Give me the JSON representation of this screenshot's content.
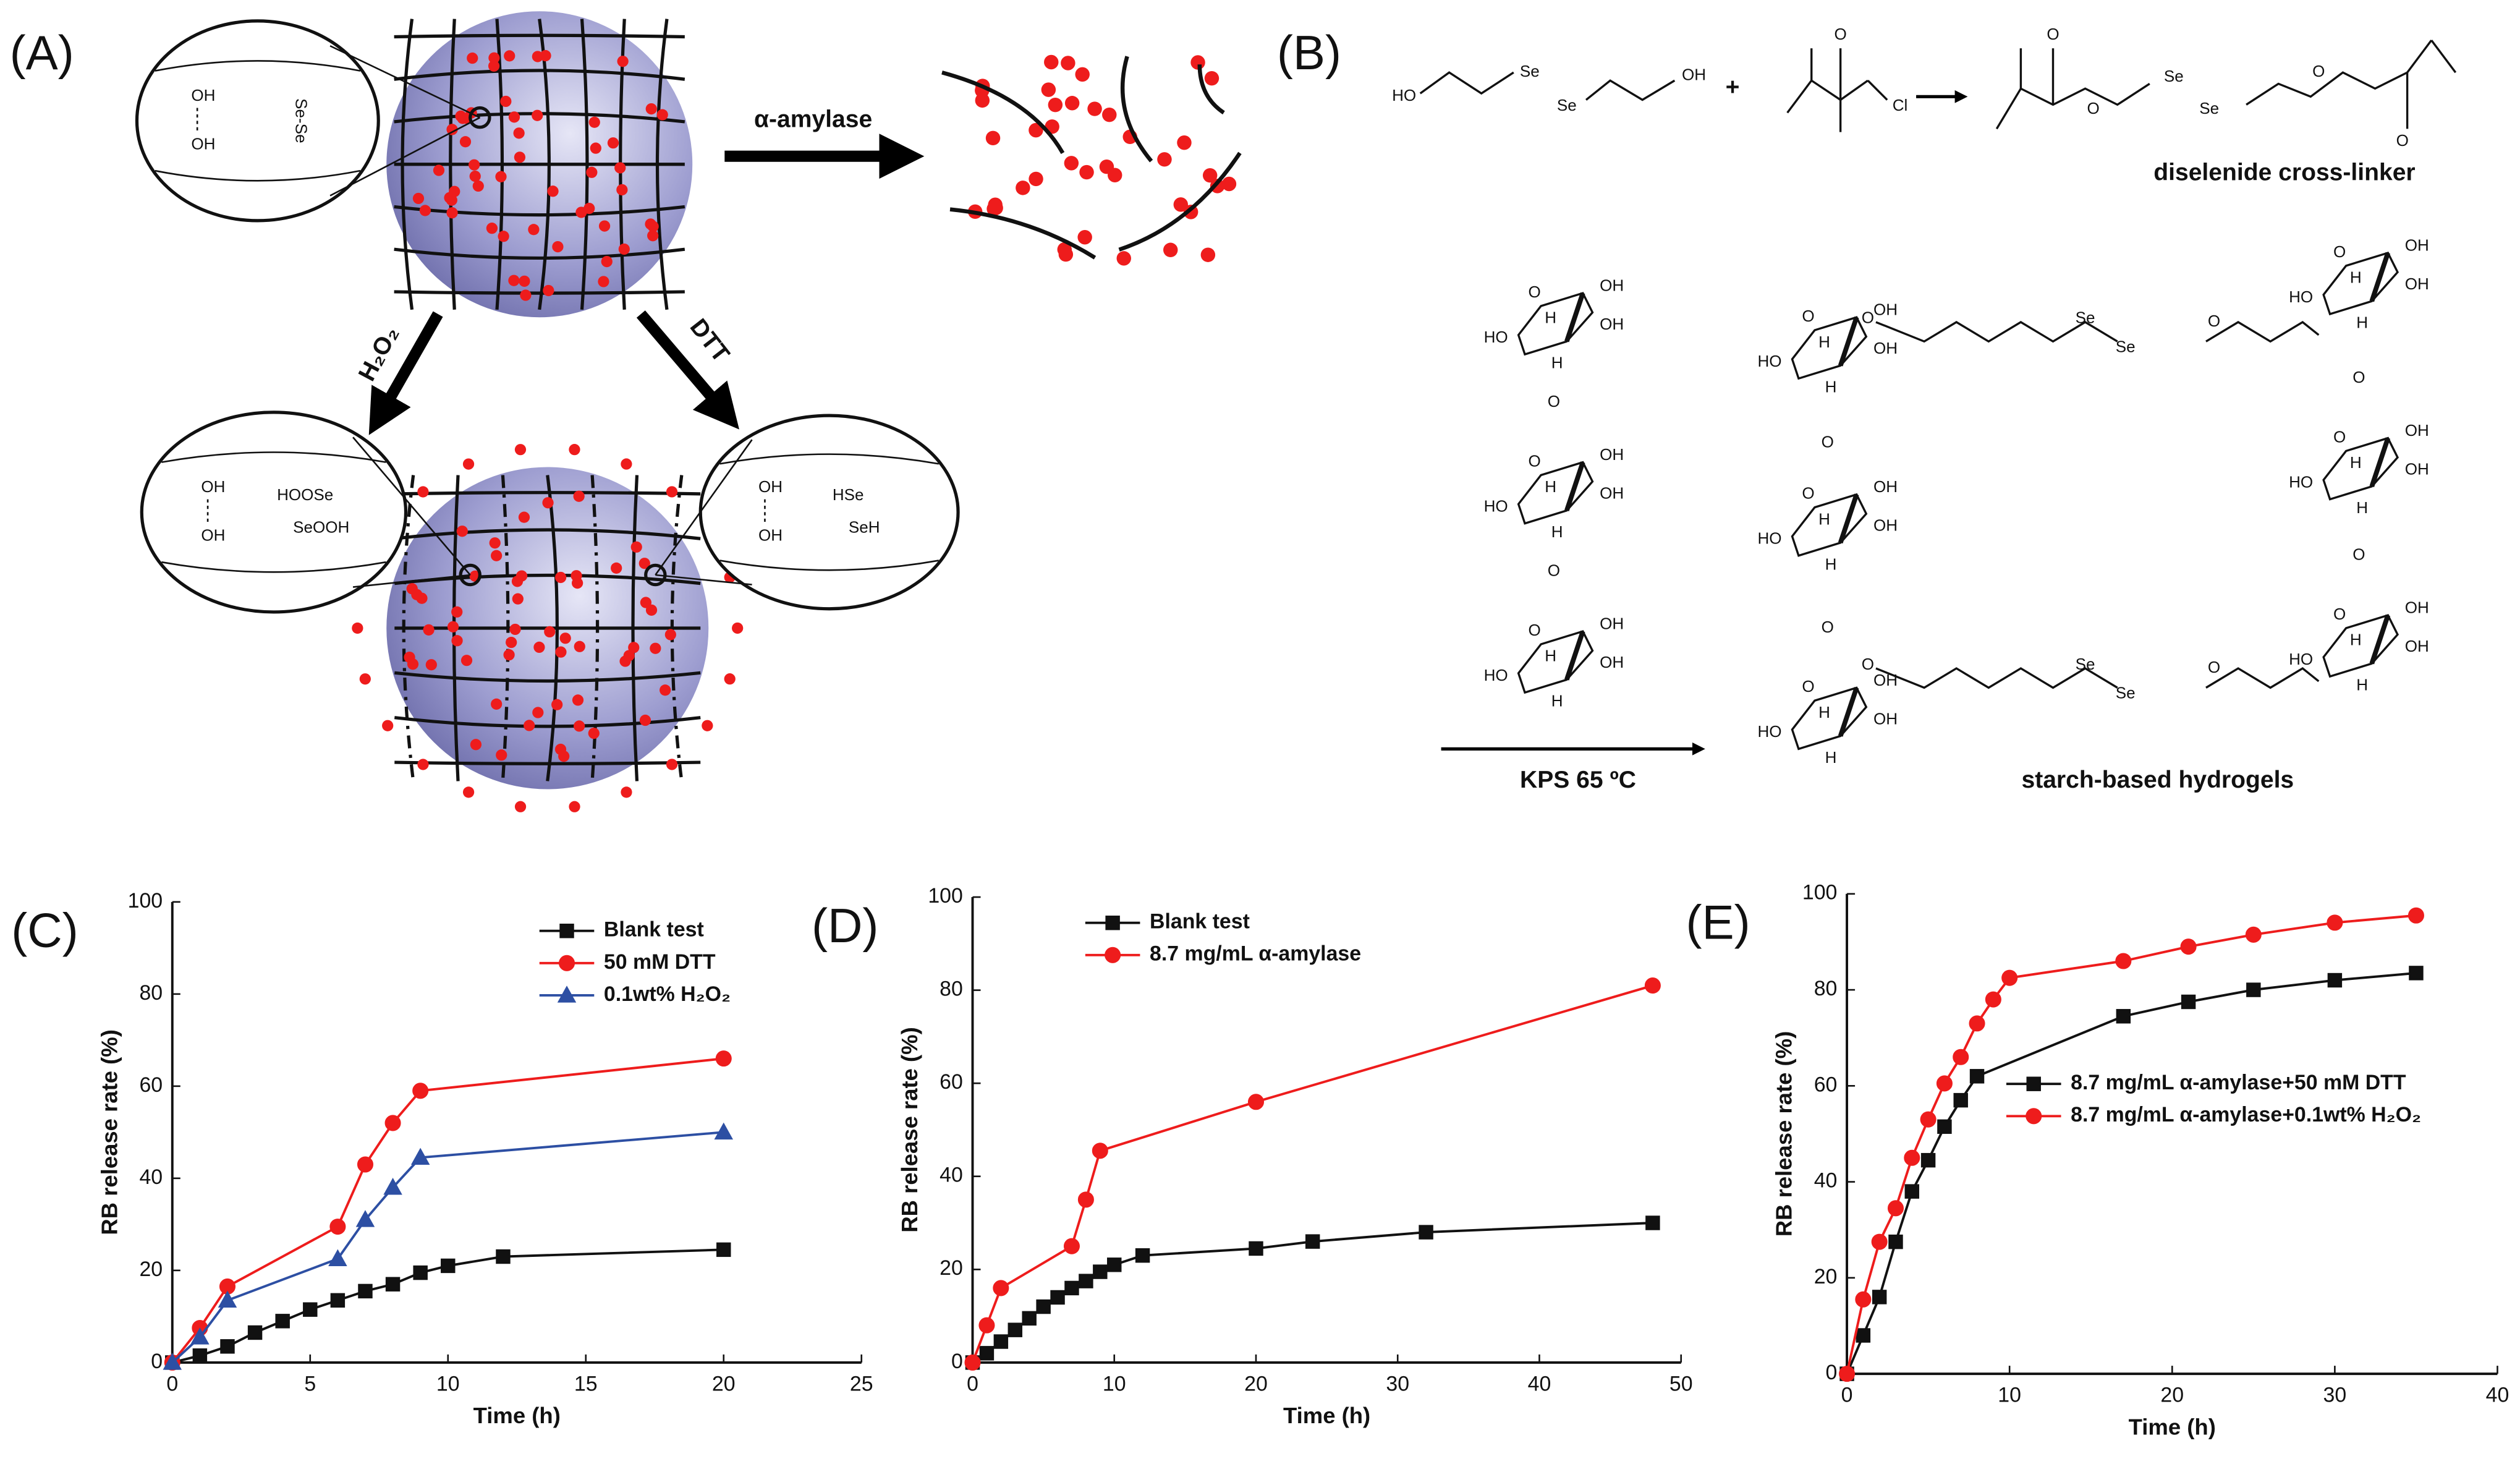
{
  "panels": {
    "A": {
      "label": "(A)",
      "arrows": [
        "α-amylase",
        "H₂O₂",
        "DTT"
      ],
      "inset_top": [
        "OH",
        "OH",
        "Se-Se"
      ],
      "inset_left": [
        "OH",
        "OH",
        "HOOSe",
        "SeOOH"
      ],
      "inset_right": [
        "OH",
        "OH",
        "HSe",
        "SeH"
      ]
    },
    "B": {
      "label": "(B)",
      "reagent_1": [
        "HO",
        "Se",
        "Se",
        "OH"
      ],
      "plus": "+",
      "reagent_2": [
        "O",
        "Cl"
      ],
      "product": [
        "O",
        "O",
        "Se",
        "Se",
        "O",
        "O"
      ],
      "product_name": "diselenide cross-linker",
      "condition": "KPS   65 ºC",
      "hydrogel_name": "starch-based hydrogels",
      "sugar_labels": {
        "hydroxyl": "OH",
        "hydroxyl_left": "HO",
        "hydrogen": "H",
        "oxygen": "O"
      },
      "linker": [
        "O",
        "Se",
        "Se",
        "O"
      ]
    }
  },
  "chart_data": [
    {
      "type": "line",
      "panel_label": "(C)",
      "x_label": "Time (h)",
      "y_label": "RB release rate (%)",
      "xlim": [
        0,
        25
      ],
      "xticks": [
        0,
        5,
        10,
        15,
        20,
        25
      ],
      "ylim": [
        0,
        100
      ],
      "yticks": [
        0,
        20,
        40,
        60,
        80,
        100
      ],
      "legend": "upper right",
      "series": [
        {
          "name": "Blank test",
          "color": "#111111",
          "marker": "square",
          "x": [
            0,
            1,
            2,
            3,
            4,
            5,
            6,
            7,
            8,
            9,
            10,
            12,
            20
          ],
          "values": [
            0,
            1.5,
            3.5,
            6.5,
            9,
            11.5,
            13.5,
            15.5,
            17,
            19.5,
            21,
            23,
            24.5
          ]
        },
        {
          "name": "50 mM DTT",
          "color": "#ee1c1c",
          "marker": "circle",
          "x": [
            0,
            1,
            2,
            6,
            7,
            8,
            9,
            20
          ],
          "values": [
            0,
            7.5,
            16.5,
            29.5,
            43,
            52,
            59,
            66
          ]
        },
        {
          "name": "0.1wt% H₂O₂",
          "color": "#2d4fa3",
          "marker": "triangle",
          "x": [
            0,
            1,
            2,
            6,
            7,
            8,
            9,
            20
          ],
          "values": [
            0,
            5.5,
            13.5,
            22.5,
            31,
            38,
            44.5,
            50
          ]
        }
      ]
    },
    {
      "type": "line",
      "panel_label": "(D)",
      "x_label": "Time (h)",
      "y_label": "RB release rate (%)",
      "xlim": [
        0,
        50
      ],
      "xticks": [
        0,
        10,
        20,
        30,
        40,
        50
      ],
      "ylim": [
        0,
        100
      ],
      "yticks": [
        0,
        20,
        40,
        60,
        80,
        100
      ],
      "legend": "upper center",
      "series": [
        {
          "name": "Blank test",
          "color": "#111111",
          "marker": "square",
          "x": [
            0,
            1,
            2,
            3,
            4,
            5,
            6,
            7,
            8,
            9,
            10,
            12,
            20,
            24,
            32,
            48
          ],
          "values": [
            0,
            2,
            4.5,
            7,
            9.5,
            12,
            14,
            16,
            17.5,
            19.5,
            21,
            23,
            24.5,
            26,
            28,
            30
          ]
        },
        {
          "name": "8.7 mg/mL α-amylase",
          "color": "#ee1c1c",
          "marker": "circle",
          "x": [
            0,
            1,
            2,
            7,
            8,
            9,
            20,
            48
          ],
          "values": [
            0,
            8,
            16,
            25,
            35,
            45.5,
            56,
            81
          ]
        }
      ]
    },
    {
      "type": "line",
      "panel_label": "(E)",
      "x_label": "Time (h)",
      "y_label": "RB release rate (%)",
      "xlim": [
        0,
        40
      ],
      "xticks": [
        0,
        10,
        20,
        30,
        40
      ],
      "ylim": [
        0,
        100
      ],
      "yticks": [
        0,
        20,
        40,
        60,
        80,
        100
      ],
      "legend": "lower right",
      "series": [
        {
          "name": "8.7 mg/mL α-amylase+50 mM DTT",
          "color": "#111111",
          "marker": "square",
          "x": [
            0,
            1,
            2,
            3,
            4,
            5,
            6,
            7,
            8,
            17,
            21,
            25,
            30,
            35
          ],
          "values": [
            0,
            8,
            16,
            27.5,
            38,
            44.5,
            51.5,
            57,
            62,
            74.5,
            77.5,
            80,
            82,
            83.5
          ]
        },
        {
          "name": "8.7 mg/mL α-amylase+0.1wt% H₂O₂",
          "color": "#ee1c1c",
          "marker": "circle",
          "x": [
            0,
            1,
            2,
            3,
            4,
            5,
            6,
            7,
            8,
            9,
            10,
            17,
            21,
            25,
            30,
            35
          ],
          "values": [
            0,
            15.5,
            27.5,
            34.5,
            45,
            53,
            60.5,
            66,
            73,
            78,
            82.5,
            86,
            89,
            91.5,
            94,
            95.5
          ]
        }
      ]
    }
  ]
}
